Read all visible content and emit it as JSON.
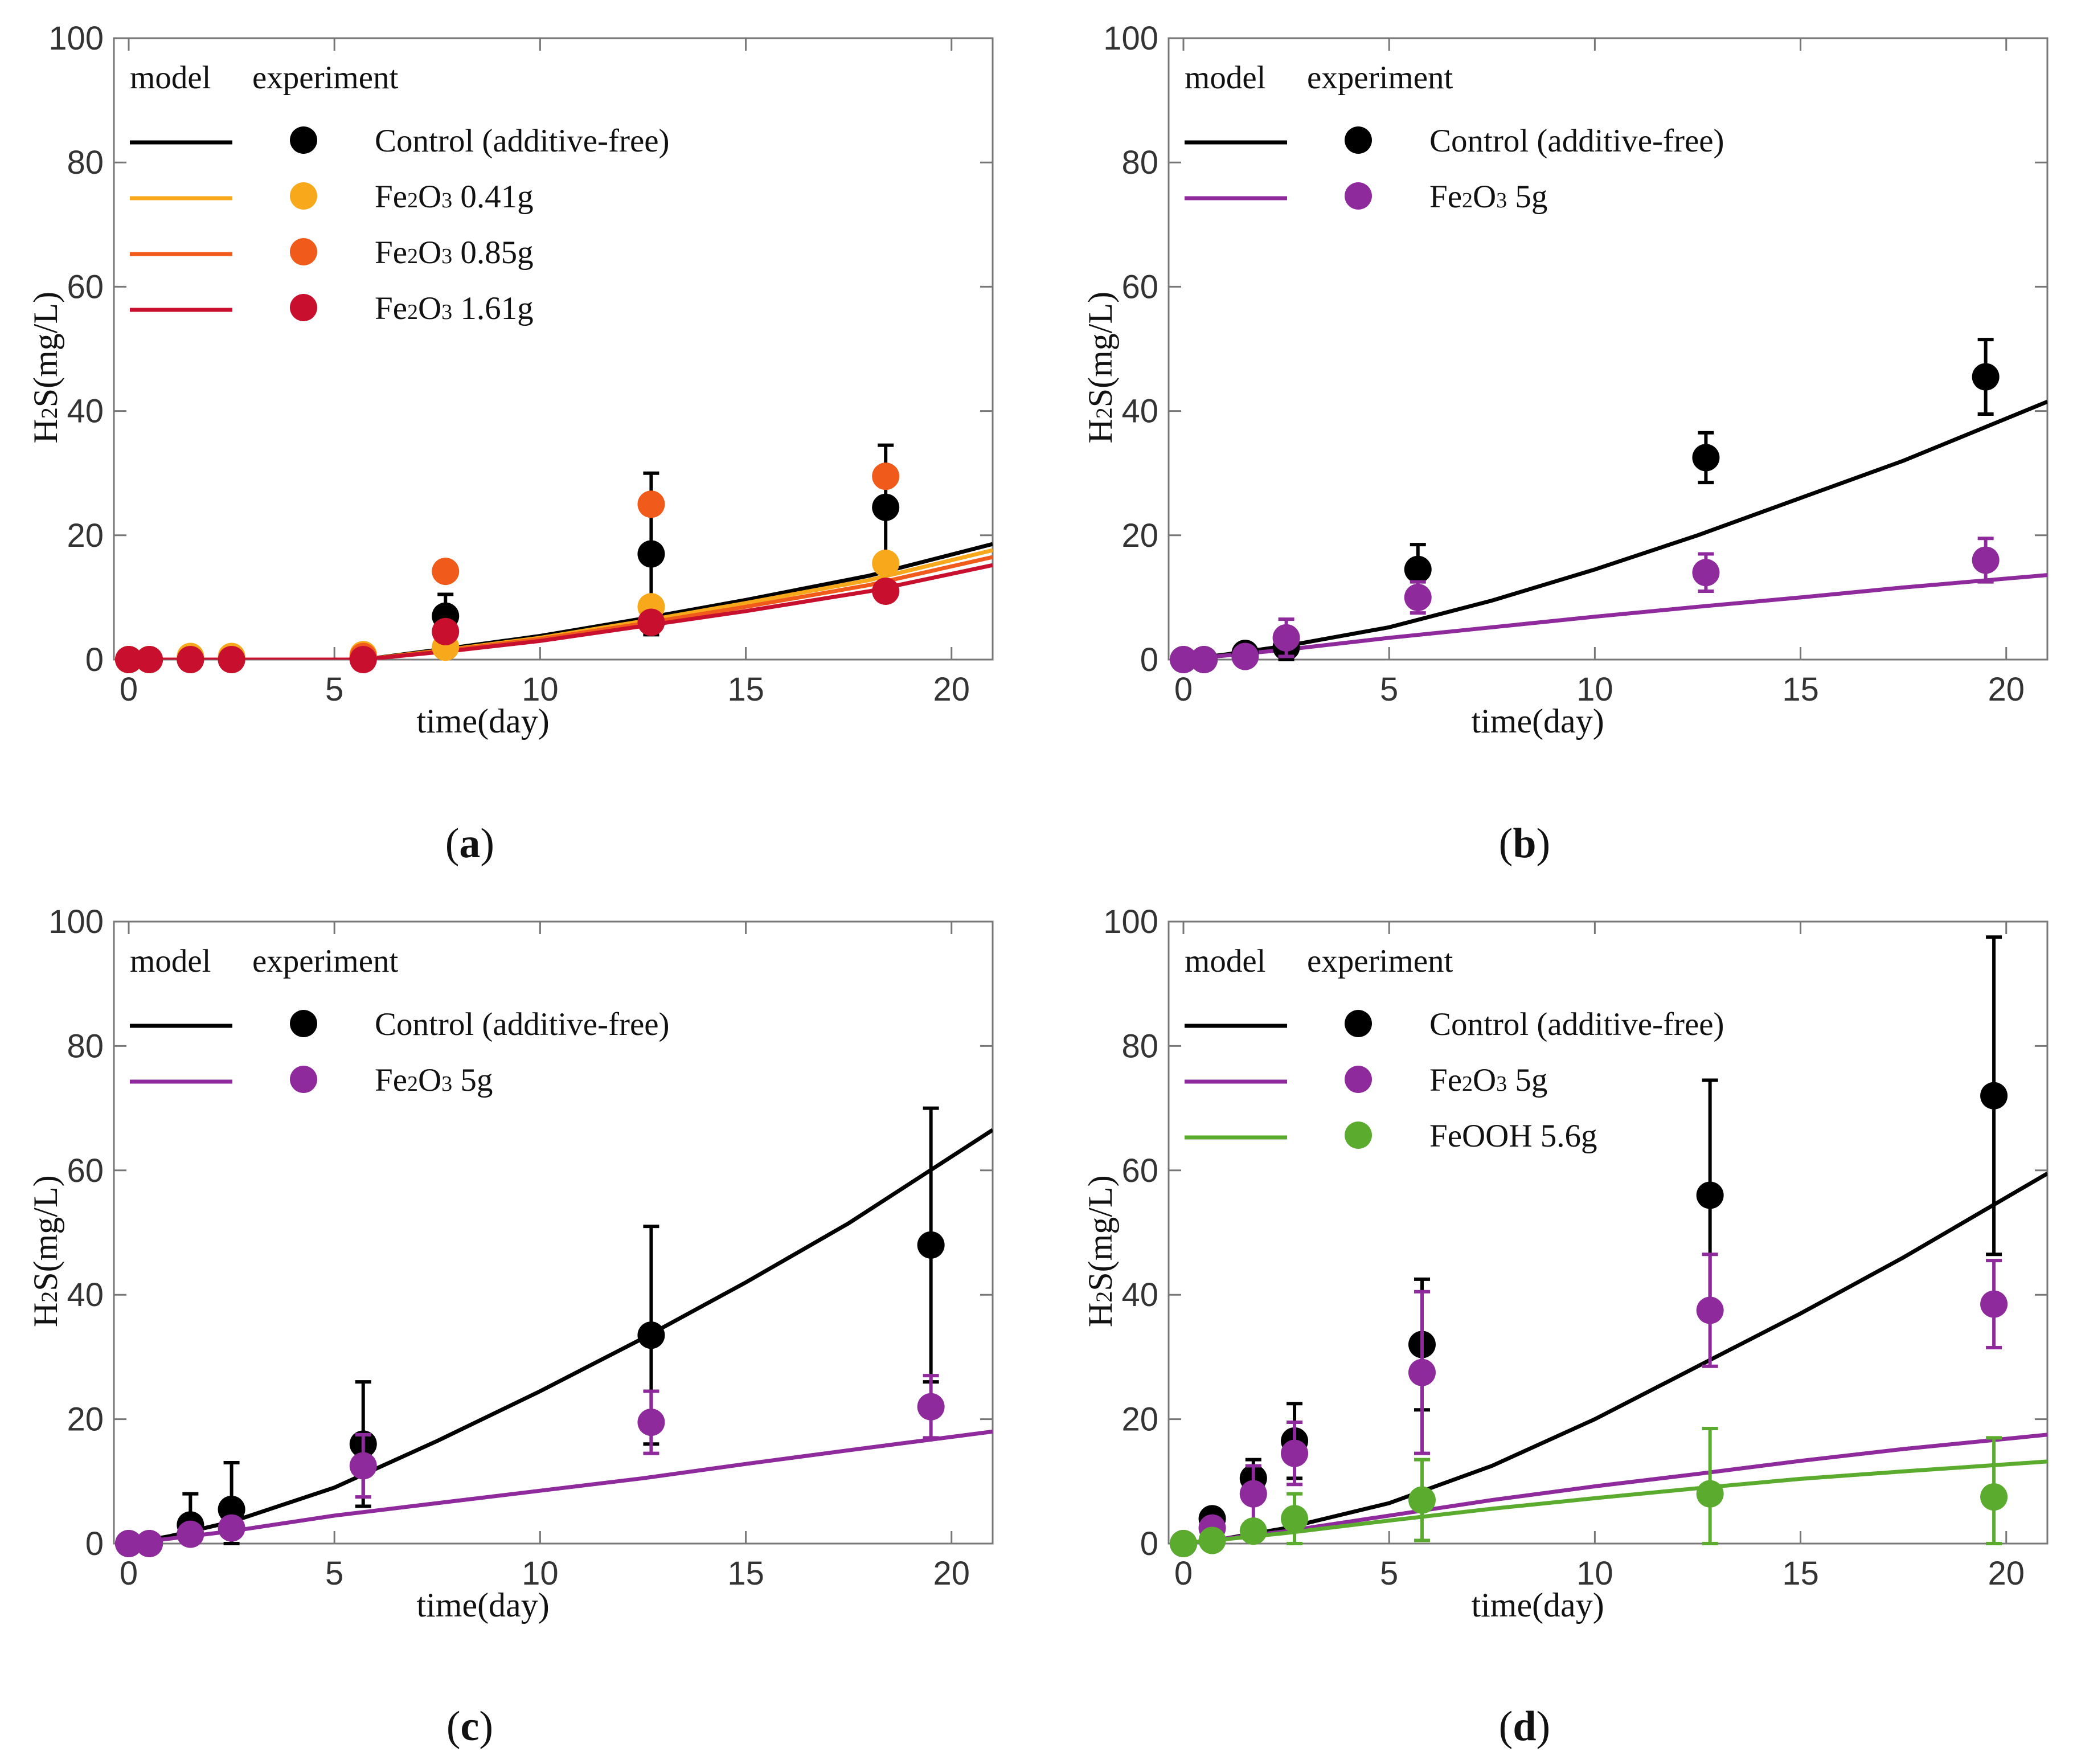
{
  "figure": {
    "panels": [
      "a",
      "b",
      "c",
      "d"
    ]
  },
  "chart_data": [
    {
      "type": "line+scatter",
      "panel_label": "a",
      "xlabel": "time(day)",
      "ylabel": "H2S(mg/L)",
      "xlim": [
        0,
        21
      ],
      "ylim": [
        0,
        100
      ],
      "xticks": [
        0,
        5,
        10,
        15,
        20
      ],
      "yticks": [
        0,
        20,
        40,
        60,
        80,
        100
      ],
      "legend_headers": {
        "model": "model",
        "experiment": "experiment"
      },
      "series": [
        {
          "name": "Control (additive-free)",
          "color": "#000000",
          "model": {
            "x": [
              0,
              5.7,
              8,
              10,
              12.5,
              15,
              18,
              21
            ],
            "y": [
              0,
              0,
              2,
              3.8,
              6.6,
              9.6,
              13.5,
              18.6
            ]
          },
          "points": {
            "x": [
              0,
              0.5,
              1.5,
              2.5,
              5.7,
              7.7,
              12.7,
              18.4
            ],
            "y": [
              0,
              0,
              0,
              0,
              0.3,
              7,
              17,
              24.5
            ],
            "err": [
              0,
              0,
              0,
              0,
              0,
              3.5,
              13,
              10
            ]
          }
        },
        {
          "name": "Fe2O3 0.41g",
          "color": "#f7a81b",
          "model": {
            "x": [
              0,
              5.7,
              8,
              10,
              12.5,
              15,
              18,
              21
            ],
            "y": [
              0,
              0,
              1.8,
              3.5,
              6.2,
              9.1,
              12.8,
              17.6
            ]
          },
          "points": {
            "x": [
              0,
              0.5,
              1.5,
              2.5,
              5.7,
              7.7,
              12.7,
              18.4
            ],
            "y": [
              0,
              0,
              0.5,
              0.5,
              0.8,
              2,
              8.5,
              15.5
            ],
            "err": [
              0,
              0,
              0,
              0,
              0,
              0,
              0,
              0
            ]
          }
        },
        {
          "name": "Fe2O3 0.85g",
          "color": "#f05a1a",
          "model": {
            "x": [
              0,
              5.7,
              8,
              10,
              12.5,
              15,
              18,
              21
            ],
            "y": [
              0,
              0,
              1.7,
              3.3,
              5.8,
              8.5,
              12.0,
              16.5
            ]
          },
          "points": {
            "x": [
              0,
              0.5,
              1.5,
              2.5,
              5.7,
              7.7,
              12.7,
              18.4
            ],
            "y": [
              0,
              0,
              0,
              0,
              0.5,
              14.2,
              25,
              29.5
            ],
            "err": [
              0,
              0,
              0,
              0,
              0,
              0,
              0,
              0
            ]
          }
        },
        {
          "name": "Fe2O3 1.61g",
          "color": "#c8102e",
          "model": {
            "x": [
              0,
              5.7,
              8,
              10,
              12.5,
              15,
              18,
              21
            ],
            "y": [
              0,
              0,
              1.5,
              3.0,
              5.4,
              7.8,
              11.0,
              15.2
            ]
          },
          "points": {
            "x": [
              0,
              0.5,
              1.5,
              2.5,
              5.7,
              7.7,
              12.7,
              18.4
            ],
            "y": [
              0,
              0,
              0,
              0,
              0,
              4.5,
              6,
              11
            ],
            "err": [
              0,
              0,
              0,
              0,
              0,
              0,
              0,
              0
            ]
          }
        }
      ]
    },
    {
      "type": "line+scatter",
      "panel_label": "b",
      "xlabel": "time(day)",
      "ylabel": "H2S(mg/L)",
      "xlim": [
        0,
        21
      ],
      "ylim": [
        0,
        100
      ],
      "xticks": [
        0,
        5,
        10,
        15,
        20
      ],
      "yticks": [
        0,
        20,
        40,
        60,
        80,
        100
      ],
      "legend_headers": {
        "model": "model",
        "experiment": "experiment"
      },
      "series": [
        {
          "name": "Control (additive-free)",
          "color": "#000000",
          "model": {
            "x": [
              0,
              1,
              2.5,
              5,
              7.5,
              10,
              12.5,
              15,
              17.5,
              21
            ],
            "y": [
              0,
              0.8,
              2.2,
              5.2,
              9.5,
              14.5,
              20,
              26,
              32,
              41.5
            ]
          },
          "points": {
            "x": [
              0,
              0.5,
              1.5,
              2.5,
              5.7,
              12.7,
              19.5
            ],
            "y": [
              0,
              0,
              1,
              2,
              14.5,
              32.5,
              45.5
            ],
            "err": [
              0,
              0,
              1,
              3,
              4,
              4,
              6
            ]
          }
        },
        {
          "name": "Fe2O3 5g",
          "color": "#8e2a9c",
          "model": {
            "x": [
              0,
              2.5,
              5,
              7.5,
              10,
              12.5,
              15,
              17.5,
              21
            ],
            "y": [
              0,
              1.6,
              3.5,
              5.2,
              6.9,
              8.5,
              10,
              11.6,
              13.6
            ]
          },
          "points": {
            "x": [
              0,
              0.5,
              1.5,
              2.5,
              5.7,
              12.7,
              19.5
            ],
            "y": [
              0,
              0,
              0.5,
              3.5,
              10,
              14,
              16
            ],
            "err": [
              0,
              0,
              0.5,
              3,
              2.5,
              3,
              3.5
            ]
          }
        }
      ]
    },
    {
      "type": "line+scatter",
      "panel_label": "c",
      "xlabel": "time(day)",
      "ylabel": "H2S(mg/L)",
      "xlim": [
        0,
        21
      ],
      "ylim": [
        0,
        100
      ],
      "xticks": [
        0,
        5,
        10,
        15,
        20
      ],
      "yticks": [
        0,
        20,
        40,
        60,
        80,
        100
      ],
      "legend_headers": {
        "model": "model",
        "experiment": "experiment"
      },
      "series": [
        {
          "name": "Control (additive-free)",
          "color": "#000000",
          "model": {
            "x": [
              0,
              1,
              2.5,
              5,
              7.5,
              10,
              12.5,
              15,
              17.5,
              21
            ],
            "y": [
              0,
              1.2,
              3.5,
              9,
              16.5,
              24.5,
              33,
              42,
              51.5,
              66.5
            ]
          },
          "points": {
            "x": [
              0,
              0.5,
              1.5,
              2.5,
              5.7,
              12.7,
              19.5
            ],
            "y": [
              0,
              0,
              3,
              5.5,
              16,
              33.5,
              48
            ],
            "err": [
              0,
              0,
              5,
              7.5,
              10,
              17.5,
              22
            ]
          }
        },
        {
          "name": "Fe2O3 5g",
          "color": "#8e2a9c",
          "model": {
            "x": [
              0,
              2.5,
              5,
              7.5,
              10,
              12.5,
              15,
              17.5,
              21
            ],
            "y": [
              0,
              2,
              4.5,
              6.5,
              8.5,
              10.5,
              12.8,
              15,
              18
            ]
          },
          "points": {
            "x": [
              0,
              0.5,
              1.5,
              2.5,
              5.7,
              12.7,
              19.5
            ],
            "y": [
              0,
              0,
              1.5,
              2.5,
              12.5,
              19.5,
              22
            ],
            "err": [
              0,
              0,
              1,
              1,
              5,
              5,
              5
            ]
          }
        }
      ]
    },
    {
      "type": "line+scatter",
      "panel_label": "d",
      "xlabel": "time(day)",
      "ylabel": "H2S(mg/L)",
      "xlim": [
        0,
        21
      ],
      "ylim": [
        0,
        100
      ],
      "xticks": [
        0,
        5,
        10,
        15,
        20
      ],
      "yticks": [
        0,
        20,
        40,
        60,
        80,
        100
      ],
      "legend_headers": {
        "model": "model",
        "experiment": "experiment"
      },
      "series": [
        {
          "name": "Control (additive-free)",
          "color": "#000000",
          "model": {
            "x": [
              0,
              1,
              2.5,
              5,
              7.5,
              10,
              12.5,
              15,
              17.5,
              21
            ],
            "y": [
              0,
              0.8,
              2.5,
              6.5,
              12.5,
              20,
              28.5,
              37,
              46,
              59.5
            ]
          },
          "points": {
            "x": [
              0,
              0.7,
              1.7,
              2.7,
              5.8,
              12.8,
              19.7
            ],
            "y": [
              0,
              4,
              10.5,
              16.5,
              32,
              56,
              72
            ],
            "err": [
              0,
              0,
              3,
              6,
              10.5,
              18.5,
              25.5
            ]
          }
        },
        {
          "name": "Fe2O3 5g",
          "color": "#8e2a9c",
          "model": {
            "x": [
              0,
              2.5,
              5,
              7.5,
              10,
              12.5,
              15,
              17.5,
              21
            ],
            "y": [
              0,
              2,
              4.5,
              7,
              9.2,
              11.2,
              13.3,
              15.2,
              17.5
            ]
          },
          "points": {
            "x": [
              0,
              0.7,
              1.7,
              2.7,
              5.8,
              12.8,
              19.7
            ],
            "y": [
              0,
              2.5,
              8,
              14.5,
              27.5,
              37.5,
              38.5
            ],
            "err": [
              0,
              0,
              4.5,
              5,
              13,
              9,
              7
            ]
          }
        },
        {
          "name": "FeOOH 5.6g",
          "color": "#5aab2e",
          "model": {
            "x": [
              0,
              2.5,
              5,
              7.5,
              10,
              12.5,
              15,
              17.5,
              21
            ],
            "y": [
              0,
              1.7,
              3.7,
              5.6,
              7.3,
              8.9,
              10.4,
              11.6,
              13.2
            ]
          },
          "points": {
            "x": [
              0,
              0.7,
              1.7,
              2.7,
              5.8,
              12.8,
              19.7
            ],
            "y": [
              0,
              0.5,
              2,
              4,
              7,
              8,
              7.5
            ],
            "err": [
              0,
              0,
              1.5,
              4,
              6.5,
              10.5,
              9.5
            ]
          }
        }
      ]
    }
  ]
}
